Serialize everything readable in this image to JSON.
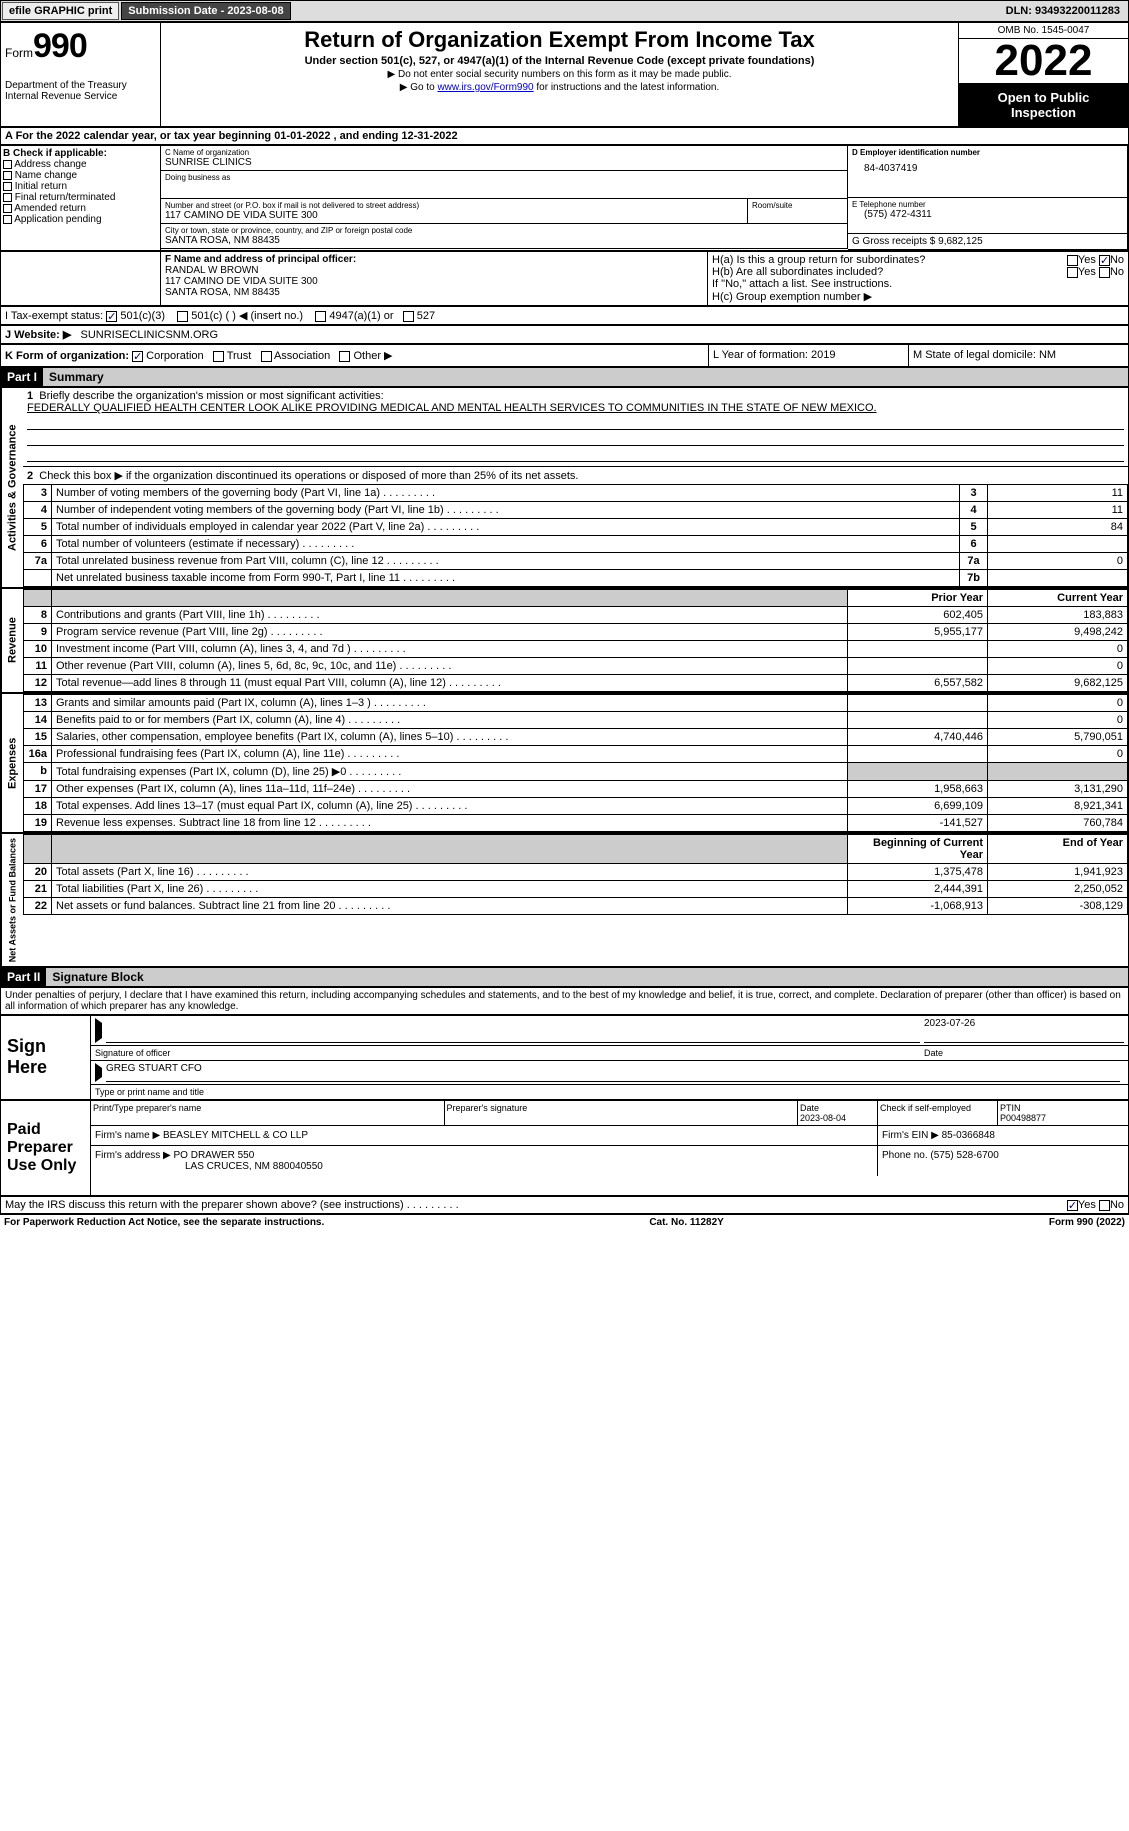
{
  "topbar": {
    "efile_label": "efile GRAPHIC print",
    "submission_label": "Submission Date - 2023-08-08",
    "dln_label": "DLN: 93493220011283"
  },
  "header": {
    "form_prefix": "Form",
    "form_number": "990",
    "dept1": "Department of the Treasury",
    "dept2": "Internal Revenue Service",
    "title": "Return of Organization Exempt From Income Tax",
    "sub": "Under section 501(c), 527, or 4947(a)(1) of the Internal Revenue Code (except private foundations)",
    "note1": "▶ Do not enter social security numbers on this form as it may be made public.",
    "note2_prefix": "▶ Go to ",
    "note2_link": "www.irs.gov/Form990",
    "note2_suffix": " for instructions and the latest information.",
    "omb": "OMB No. 1545-0047",
    "year": "2022",
    "otpi1": "Open to Public",
    "otpi2": "Inspection"
  },
  "line_a": "A  For the 2022 calendar year, or tax year beginning 01-01-2022    , and ending 12-31-2022",
  "box_b": {
    "hdr": "B Check if applicable:",
    "o1": "Address change",
    "o2": "Name change",
    "o3": "Initial return",
    "o4": "Final return/terminated",
    "o5": "Amended return",
    "o6": "Application pending"
  },
  "box_c": {
    "name_lbl": "C Name of organization",
    "name_val": "SUNRISE CLINICS",
    "dba_lbl": "Doing business as",
    "addr_lbl": "Number and street (or P.O. box if mail is not delivered to street address)",
    "room_lbl": "Room/suite",
    "addr_val": "117 CAMINO DE VIDA SUITE 300",
    "city_lbl": "City or town, state or province, country, and ZIP or foreign postal code",
    "city_val": "SANTA ROSA, NM  88435"
  },
  "box_d": {
    "lbl": "D Employer identification number",
    "val": "84-4037419"
  },
  "box_e": {
    "lbl": "E Telephone number",
    "val": "(575) 472-4311"
  },
  "box_g": {
    "lbl": "G Gross receipts $ 9,682,125"
  },
  "box_f": {
    "lbl": "F Name and address of principal officer:",
    "l1": "RANDAL W BROWN",
    "l2": "117 CAMINO DE VIDA SUITE 300",
    "l3": "SANTA ROSA, NM  88435"
  },
  "box_h": {
    "ha": "H(a)  Is this a group return for subordinates?",
    "hb": "H(b)  Are all subordinates included?",
    "hnote": "If \"No,\" attach a list. See instructions.",
    "hc": "H(c)  Group exemption number ▶",
    "yes": "Yes",
    "no": "No"
  },
  "line_i": {
    "lbl": "I   Tax-exempt status:",
    "o1": "501(c)(3)",
    "o2": "501(c) (  ) ◀ (insert no.)",
    "o3": "4947(a)(1) or",
    "o4": "527"
  },
  "line_j": {
    "lbl": "J   Website: ▶",
    "val": "SUNRISECLINICSNM.ORG"
  },
  "line_k": {
    "lbl": "K Form of organization:",
    "o1": "Corporation",
    "o2": "Trust",
    "o3": "Association",
    "o4": "Other ▶",
    "l_lbl": "L Year of formation: 2019",
    "m_lbl": "M State of legal domicile: NM"
  },
  "part1": {
    "hdr": "Part I",
    "title": "Summary",
    "tab_ag": "Activities & Governance",
    "tab_rev": "Revenue",
    "tab_exp": "Expenses",
    "tab_net": "Net Assets or Fund Balances",
    "l1_lbl": "Briefly describe the organization's mission or most significant activities:",
    "l1_val": "FEDERALLY QUALIFIED HEALTH CENTER LOOK ALIKE PROVIDING MEDICAL AND MENTAL HEALTH SERVICES TO COMMUNITIES IN THE STATE OF NEW MEXICO.",
    "l2": "Check this box ▶     if the organization discontinued its operations or disposed of more than 25% of its net assets.",
    "rows_ag": [
      {
        "n": "3",
        "t": "Number of voting members of the governing body (Part VI, line 1a)",
        "b": "3",
        "v": "11"
      },
      {
        "n": "4",
        "t": "Number of independent voting members of the governing body (Part VI, line 1b)",
        "b": "4",
        "v": "11"
      },
      {
        "n": "5",
        "t": "Total number of individuals employed in calendar year 2022 (Part V, line 2a)",
        "b": "5",
        "v": "84"
      },
      {
        "n": "6",
        "t": "Total number of volunteers (estimate if necessary)",
        "b": "6",
        "v": ""
      },
      {
        "n": "7a",
        "t": "Total unrelated business revenue from Part VIII, column (C), line 12",
        "b": "7a",
        "v": "0"
      },
      {
        "n": "",
        "t": "Net unrelated business taxable income from Form 990-T, Part I, line 11",
        "b": "7b",
        "v": ""
      }
    ],
    "hdr_prior": "Prior Year",
    "hdr_curr": "Current Year",
    "rows_rev": [
      {
        "n": "8",
        "t": "Contributions and grants (Part VIII, line 1h)",
        "p": "602,405",
        "c": "183,883"
      },
      {
        "n": "9",
        "t": "Program service revenue (Part VIII, line 2g)",
        "p": "5,955,177",
        "c": "9,498,242"
      },
      {
        "n": "10",
        "t": "Investment income (Part VIII, column (A), lines 3, 4, and 7d )",
        "p": "",
        "c": "0"
      },
      {
        "n": "11",
        "t": "Other revenue (Part VIII, column (A), lines 5, 6d, 8c, 9c, 10c, and 11e)",
        "p": "",
        "c": "0"
      },
      {
        "n": "12",
        "t": "Total revenue—add lines 8 through 11 (must equal Part VIII, column (A), line 12)",
        "p": "6,557,582",
        "c": "9,682,125"
      }
    ],
    "rows_exp": [
      {
        "n": "13",
        "t": "Grants and similar amounts paid (Part IX, column (A), lines 1–3 )",
        "p": "",
        "c": "0"
      },
      {
        "n": "14",
        "t": "Benefits paid to or for members (Part IX, column (A), line 4)",
        "p": "",
        "c": "0"
      },
      {
        "n": "15",
        "t": "Salaries, other compensation, employee benefits (Part IX, column (A), lines 5–10)",
        "p": "4,740,446",
        "c": "5,790,051"
      },
      {
        "n": "16a",
        "t": "Professional fundraising fees (Part IX, column (A), line 11e)",
        "p": "",
        "c": "0"
      },
      {
        "n": "b",
        "t": "Total fundraising expenses (Part IX, column (D), line 25) ▶0",
        "p": "__shade__",
        "c": "__shade__"
      },
      {
        "n": "17",
        "t": "Other expenses (Part IX, column (A), lines 11a–11d, 11f–24e)",
        "p": "1,958,663",
        "c": "3,131,290"
      },
      {
        "n": "18",
        "t": "Total expenses. Add lines 13–17 (must equal Part IX, column (A), line 25)",
        "p": "6,699,109",
        "c": "8,921,341"
      },
      {
        "n": "19",
        "t": "Revenue less expenses. Subtract line 18 from line 12",
        "p": "-141,527",
        "c": "760,784"
      }
    ],
    "hdr_boy": "Beginning of Current Year",
    "hdr_eoy": "End of Year",
    "rows_net": [
      {
        "n": "20",
        "t": "Total assets (Part X, line 16)",
        "p": "1,375,478",
        "c": "1,941,923"
      },
      {
        "n": "21",
        "t": "Total liabilities (Part X, line 26)",
        "p": "2,444,391",
        "c": "2,250,052"
      },
      {
        "n": "22",
        "t": "Net assets or fund balances. Subtract line 21 from line 20",
        "p": "-1,068,913",
        "c": "-308,129"
      }
    ]
  },
  "part2": {
    "hdr": "Part II",
    "title": "Signature Block",
    "decl": "Under penalties of perjury, I declare that I have examined this return, including accompanying schedules and statements, and to the best of my knowledge and belief, it is true, correct, and complete. Declaration of preparer (other than officer) is based on all information of which preparer has any knowledge.",
    "sign_here": "Sign Here",
    "sig_officer": "Signature of officer",
    "sig_date": "2023-07-26",
    "date_lbl": "Date",
    "officer_name": "GREG STUART CFO",
    "type_name": "Type or print name and title",
    "paid_prep": "Paid Preparer Use Only",
    "pp_name_lbl": "Print/Type preparer's name",
    "pp_sig_lbl": "Preparer's signature",
    "pp_date_lbl": "Date",
    "pp_date": "2023-08-04",
    "pp_check_lbl": "Check      if self-employed",
    "pp_ptin_lbl": "PTIN",
    "pp_ptin": "P00498877",
    "firm_name_lbl": "Firm's name      ▶",
    "firm_name": "BEASLEY MITCHELL & CO LLP",
    "firm_ein_lbl": "Firm's EIN ▶",
    "firm_ein": "85-0366848",
    "firm_addr_lbl": "Firm's address ▶",
    "firm_addr1": "PO DRAWER 550",
    "firm_addr2": "LAS CRUCES, NM  880040550",
    "firm_phone_lbl": "Phone no.",
    "firm_phone": "(575) 528-6700",
    "discuss": "May the IRS discuss this return with the preparer shown above? (see instructions)",
    "discuss_yes": "Yes",
    "discuss_no": "No"
  },
  "footer": {
    "l": "For Paperwork Reduction Act Notice, see the separate instructions.",
    "m": "Cat. No. 11282Y",
    "r": "Form 990 (2022)"
  }
}
